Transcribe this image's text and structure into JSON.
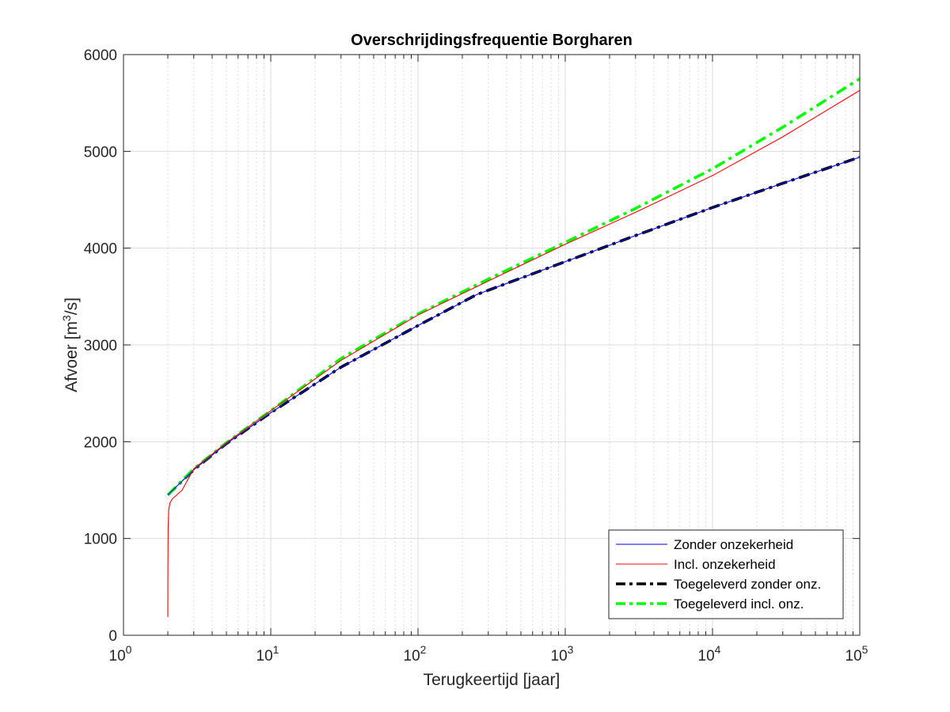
{
  "chart_data": {
    "type": "line",
    "title": "Overschrijdingsfrequentie Borgharen",
    "xlabel": "Terugkeertijd [jaar]",
    "ylabel_prefix": "Afvoer [m",
    "ylabel_sup": "3",
    "ylabel_suffix": "/s]",
    "x_scale": "log",
    "xlim": [
      1,
      100000
    ],
    "ylim": [
      0,
      6000
    ],
    "grid": true,
    "legend_position": "bottom-right",
    "x_tick_bases": [
      "10",
      "10",
      "10",
      "10",
      "10",
      "10"
    ],
    "x_tick_exponents": [
      "0",
      "1",
      "2",
      "3",
      "4",
      "5"
    ],
    "y_ticks": [
      "0",
      "1000",
      "2000",
      "3000",
      "4000",
      "5000",
      "6000"
    ],
    "series": [
      {
        "name": "Zonder onzekerheid",
        "color": "#0000ff",
        "style": "solid",
        "x": [
          2,
          3,
          5,
          10,
          30,
          100,
          250,
          1000,
          3000,
          10000,
          30000,
          100000
        ],
        "y": [
          1450,
          1710,
          1980,
          2300,
          2770,
          3200,
          3520,
          3860,
          4130,
          4420,
          4670,
          4940
        ]
      },
      {
        "name": "Incl. onzekerheid",
        "color": "#ff0000",
        "style": "solid",
        "x": [
          2,
          2.003,
          2.01,
          2.03,
          2.07,
          2.15,
          2.5,
          3,
          5,
          10,
          30,
          100,
          300,
          1000,
          3000,
          10000,
          30000,
          100000
        ],
        "y": [
          190,
          700,
          1100,
          1300,
          1370,
          1410,
          1500,
          1720,
          1990,
          2320,
          2840,
          3310,
          3660,
          4040,
          4370,
          4750,
          5150,
          5630
        ]
      },
      {
        "name": "Toegeleverd zonder onz.",
        "color": "#000000",
        "style": "dashdot",
        "x": [
          2,
          3,
          5,
          10,
          30,
          100,
          250,
          1000,
          3000,
          10000,
          30000,
          100000
        ],
        "y": [
          1450,
          1710,
          1980,
          2300,
          2770,
          3200,
          3520,
          3860,
          4130,
          4420,
          4670,
          4940
        ]
      },
      {
        "name": "Toegeleverd incl. onz.",
        "color": "#00ff00",
        "style": "dashdot",
        "x": [
          2,
          3,
          5,
          10,
          30,
          100,
          300,
          1000,
          3000,
          10000,
          30000,
          100000
        ],
        "y": [
          1450,
          1720,
          1990,
          2320,
          2860,
          3320,
          3680,
          4060,
          4410,
          4820,
          5250,
          5750
        ]
      }
    ]
  }
}
